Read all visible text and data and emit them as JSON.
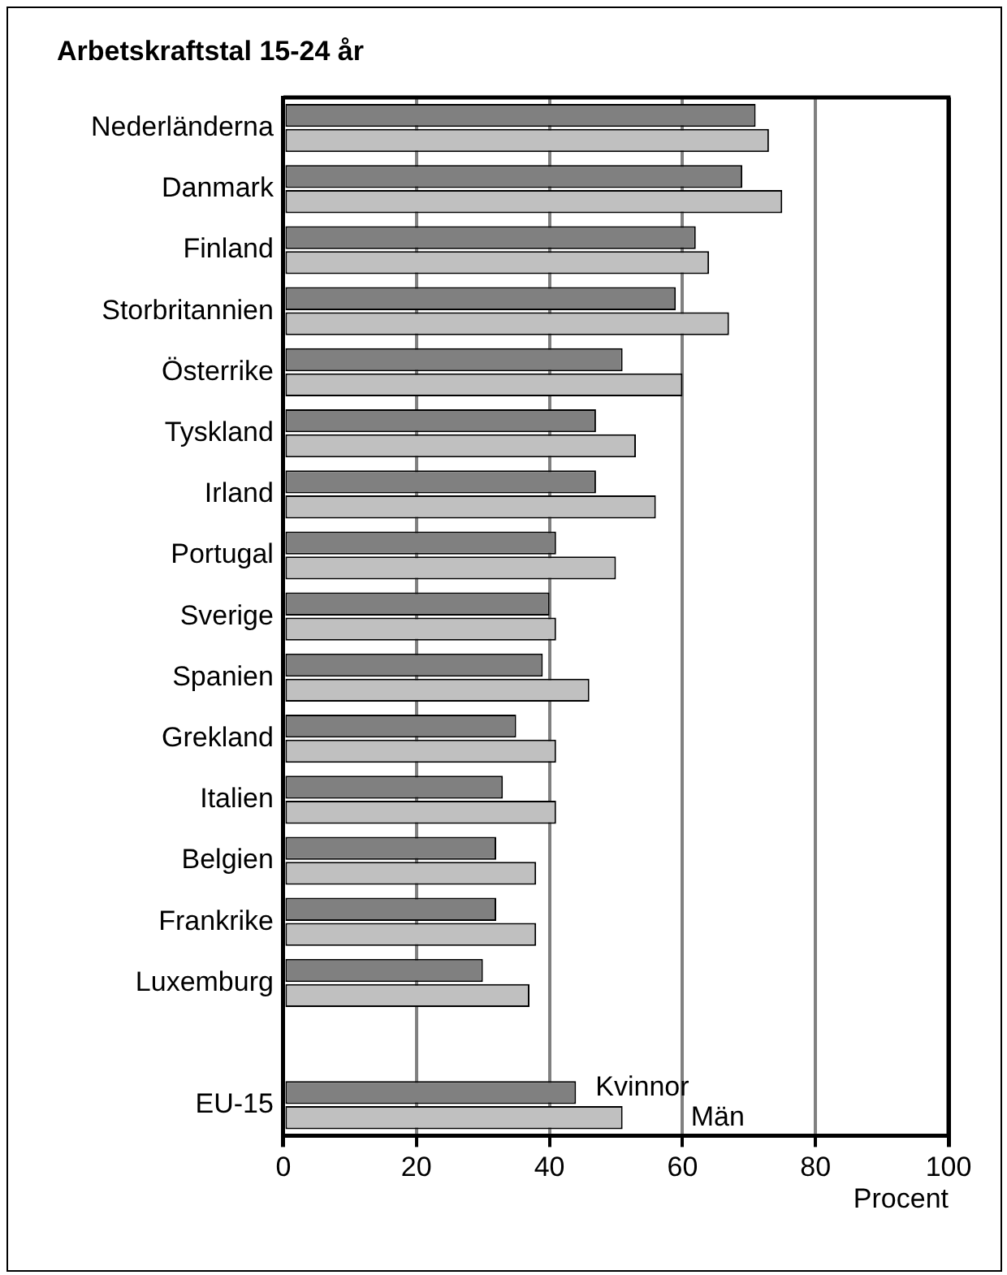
{
  "chart_data": {
    "type": "bar",
    "orientation": "horizontal",
    "title": "Arbetskraftstal 15-24 år",
    "xlabel": "Procent",
    "categories": [
      "Nederländerna",
      "Danmark",
      "Finland",
      "Storbritannien",
      "Österrike",
      "Tyskland",
      "Irland",
      "Portugal",
      "Sverige",
      "Spanien",
      "Grekland",
      "Italien",
      "Belgien",
      "Frankrike",
      "Luxemburg",
      null,
      "EU-15"
    ],
    "series": [
      {
        "name": "Kvinnor",
        "color": "#808080",
        "values": [
          71,
          69,
          62,
          59,
          51,
          47,
          47,
          41,
          40,
          39,
          35,
          33,
          32,
          32,
          30,
          null,
          44
        ]
      },
      {
        "name": "Män",
        "color": "#c0c0c0",
        "values": [
          73,
          75,
          64,
          67,
          60,
          53,
          56,
          50,
          41,
          46,
          41,
          41,
          38,
          38,
          37,
          null,
          51
        ]
      }
    ],
    "xlim": [
      0,
      100
    ],
    "xticks": [
      0,
      20,
      40,
      60,
      80,
      100
    ],
    "grid": "x",
    "legend": false
  }
}
